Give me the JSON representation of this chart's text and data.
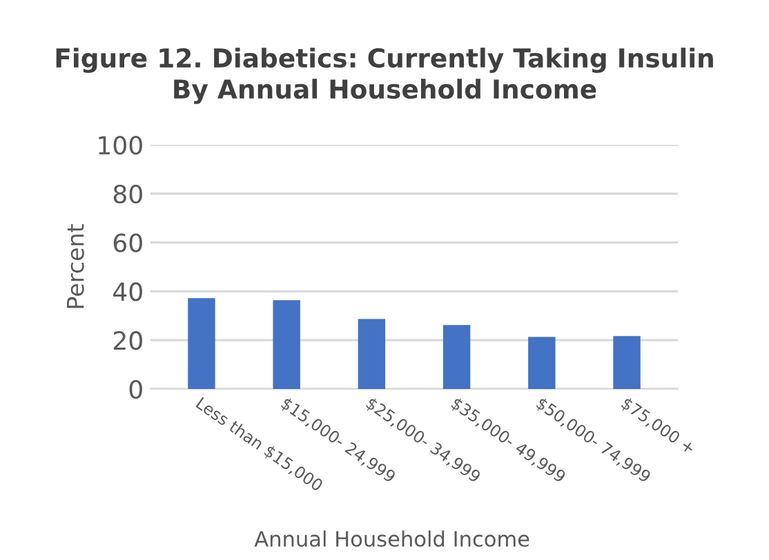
{
  "chart_data": {
    "type": "bar",
    "title": "Figure 12. Diabetics: Currently Taking Insulin\nBy Annual Household Income",
    "xlabel": "Annual Household Income",
    "ylabel": "Percent",
    "categories": [
      "Less than $15,000",
      "$15,000- 24,999",
      "$25,000- 34,999",
      "$35,000- 49,999",
      "$50,000- 74,999",
      "$75,000 +"
    ],
    "values": [
      37.2,
      36.4,
      28.7,
      26.2,
      21.3,
      21.7
    ],
    "color": "#4472c4",
    "ylim": [
      0,
      100
    ],
    "yticks": [
      0,
      20,
      40,
      60,
      80,
      100
    ],
    "grid": "y"
  }
}
